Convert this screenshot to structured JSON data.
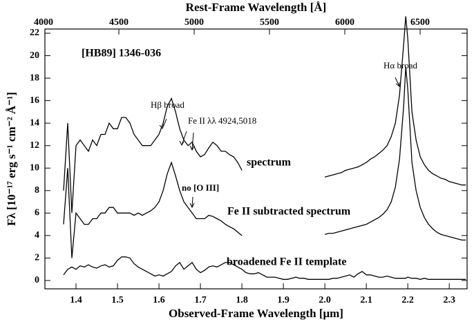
{
  "chart_data": {
    "type": "line",
    "x2label": "Rest-Frame Wavelength [Å]",
    "xlabel": "Observed-Frame Wavelength [μm]",
    "ylabel": "Fλ [10⁻¹⁷ erg s⁻¹ cm⁻² Å⁻¹]",
    "annotations": [
      "[HB89] 1346-036",
      "Hβ broad",
      "Fe II λλ 4924,5018",
      "Hα broad",
      "no [O III]"
    ],
    "xlim": [
      1.325,
      2.343
    ],
    "xticks": [
      1.4,
      1.5,
      1.6,
      1.7,
      1.8,
      1.9,
      {
        "value": 2,
        "label": "2.0"
      },
      2.1,
      2.2,
      2.3
    ],
    "x2lim": [
      4009,
      6812
    ],
    "x2ticks": [
      4000,
      4500,
      5000,
      5500,
      6000,
      6500
    ],
    "ylim": [
      -0.74,
      22.37
    ],
    "yticks": [
      0,
      2,
      4,
      6,
      8,
      10,
      12,
      14,
      16,
      18,
      20,
      22
    ],
    "x": [
      1.37,
      1.38,
      1.39,
      1.4,
      1.41,
      1.42,
      1.43,
      1.44,
      1.45,
      1.46,
      1.47,
      1.48,
      1.49,
      1.5,
      1.51,
      1.52,
      1.53,
      1.54,
      1.55,
      1.56,
      1.57,
      1.58,
      1.59,
      1.6,
      1.61,
      1.62,
      1.63,
      1.64,
      1.65,
      1.66,
      1.67,
      1.68,
      1.69,
      1.7,
      1.71,
      1.72,
      1.73,
      1.74,
      1.75,
      1.76,
      1.77,
      1.78,
      1.79,
      1.8,
      1.81,
      1.82,
      1.83,
      1.84,
      1.85,
      1.86,
      1.87,
      1.88,
      1.89,
      1.9,
      1.91,
      1.92,
      1.93,
      1.94,
      1.95,
      1.96,
      1.97,
      1.98,
      1.99,
      2.0,
      2.01,
      2.02,
      2.03,
      2.04,
      2.05,
      2.06,
      2.07,
      2.08,
      2.09,
      2.1,
      2.11,
      2.12,
      2.13,
      2.14,
      2.15,
      2.16,
      2.17,
      2.18,
      2.19,
      2.195,
      2.2,
      2.21,
      2.22,
      2.23,
      2.24,
      2.25,
      2.26,
      2.27,
      2.28,
      2.29,
      2.3,
      2.31,
      2.32,
      2.33,
      2.34
    ],
    "series": [
      {
        "name": "spectrum",
        "color": "#000000",
        "values": [
          8,
          14,
          6,
          12,
          12.5,
          12,
          11.5,
          12.5,
          12,
          13,
          13,
          14,
          13.5,
          13.5,
          14.5,
          14.5,
          14,
          13,
          12.5,
          12,
          12,
          12,
          12.5,
          13,
          14,
          15.5,
          16.2,
          15,
          13.5,
          12.5,
          12,
          12.3,
          11.5,
          11,
          11.2,
          11.8,
          12.3,
          12,
          11.5,
          11.5,
          11.2,
          11,
          10.5,
          9.8,
          null,
          null,
          null,
          null,
          null,
          null,
          null,
          null,
          null,
          null,
          null,
          null,
          null,
          null,
          null,
          null,
          null,
          null,
          null,
          9.2,
          9.3,
          9.4,
          9.5,
          9.6,
          9.8,
          9.9,
          10,
          10.1,
          10.3,
          10.5,
          10.8,
          11,
          11.3,
          11.6,
          12,
          12.8,
          14,
          16.5,
          21,
          23.5,
          21.5,
          15,
          12.5,
          11,
          10.3,
          9.8,
          9.5,
          9.3,
          9.1,
          9,
          8.8,
          8.7,
          8.6,
          8.5,
          8.5
        ]
      },
      {
        "name": "Fe II subtracted spectrum",
        "color": "#000000",
        "values": [
          5,
          10,
          2,
          6,
          5.5,
          5,
          5,
          5.5,
          5.5,
          6,
          6,
          6.5,
          6.5,
          6,
          6,
          6,
          6,
          5.8,
          6,
          5.8,
          6,
          6.2,
          6.5,
          7,
          8,
          9.5,
          10.5,
          9.3,
          8,
          7,
          6.5,
          6,
          5.5,
          5.5,
          5.5,
          5.8,
          5.7,
          5.5,
          5.3,
          5,
          4.8,
          4.6,
          4.3,
          4,
          null,
          null,
          null,
          null,
          null,
          null,
          null,
          null,
          null,
          null,
          null,
          null,
          null,
          null,
          null,
          null,
          null,
          null,
          null,
          4.1,
          4.2,
          4.2,
          4.3,
          4.4,
          4.5,
          4.6,
          4.7,
          4.8,
          4.9,
          5.0,
          5.2,
          5.4,
          5.6,
          5.9,
          6.3,
          7,
          8.3,
          10.8,
          15.5,
          19,
          17,
          10.5,
          8,
          6.5,
          5.6,
          5,
          4.6,
          4.3,
          4.1,
          4,
          3.9,
          3.8,
          3.7,
          3.6,
          3.6
        ]
      },
      {
        "name": "broadened Fe II template",
        "color": "#000000",
        "values": [
          0.5,
          1,
          1.2,
          1,
          1.3,
          1.2,
          1.4,
          1.2,
          1.1,
          1.3,
          1.4,
          1.2,
          1.3,
          1.8,
          2.1,
          2.1,
          2,
          1.5,
          1.2,
          1,
          0.8,
          0.6,
          0.4,
          0.5,
          0.4,
          0.6,
          0.8,
          1.3,
          1.6,
          1,
          1.3,
          1.6,
          1,
          0.7,
          0.9,
          1.2,
          1.3,
          1.2,
          1.4,
          1.6,
          1.6,
          1.4,
          1.2,
          1,
          0.7,
          0.6,
          0.6,
          0.7,
          0.5,
          0.3,
          0.3,
          0.3,
          0.2,
          0.1,
          0.1,
          0.2,
          0.3,
          0.2,
          0.2,
          0.1,
          0.1,
          0.1,
          0.1,
          0.1,
          0.1,
          0.2,
          0.2,
          0.3,
          0.4,
          0.5,
          0.3,
          0.6,
          0.8,
          0.5,
          0.5,
          0.4,
          0.3,
          0.3,
          0.4,
          0.3,
          0.2,
          0.2,
          0.2,
          0.2,
          0.3,
          0.2,
          0.2,
          0.1,
          0.2,
          0.1,
          0.1,
          0.1,
          0.1,
          0.1,
          0.1,
          0.1,
          0.1,
          0.1,
          0.1
        ]
      }
    ]
  }
}
